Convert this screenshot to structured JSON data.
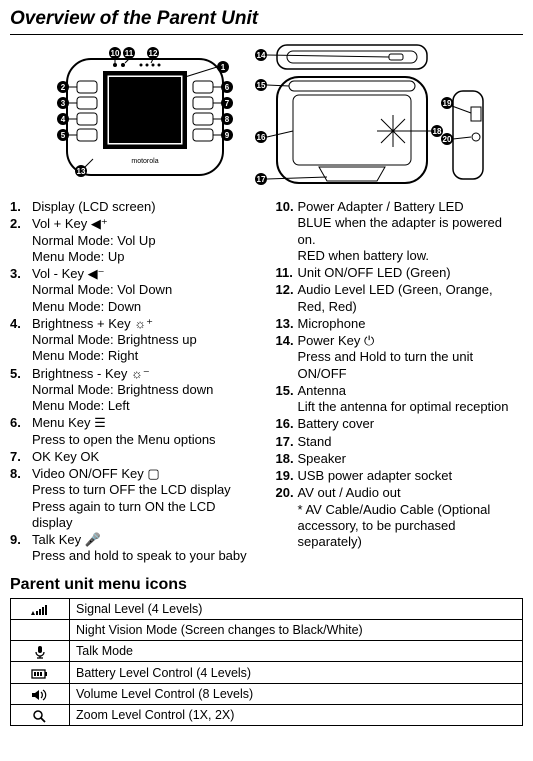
{
  "title": "Overview of the Parent Unit",
  "left": [
    {
      "n": "1.",
      "lines": [
        "Display (LCD screen)"
      ]
    },
    {
      "n": "2.",
      "lines": [
        "Vol + Key ◀⁺",
        "Normal Mode: Vol Up",
        "Menu Mode: Up"
      ]
    },
    {
      "n": "3.",
      "lines": [
        "Vol - Key ◀⁻",
        "Normal Mode: Vol Down",
        "Menu Mode: Down"
      ]
    },
    {
      "n": "4.",
      "lines": [
        "Brightness + Key ☼⁺",
        "Normal Mode: Brightness up",
        "Menu Mode: Right"
      ]
    },
    {
      "n": "5.",
      "lines": [
        "Brightness - Key ☼⁻",
        "Normal Mode: Brightness down",
        "Menu Mode: Left"
      ]
    },
    {
      "n": "6.",
      "lines": [
        "Menu Key ☰",
        "Press to open the Menu options"
      ]
    },
    {
      "n": "7.",
      "lines": [
        "OK Key OK"
      ]
    },
    {
      "n": "8.",
      "lines": [
        "Video ON/OFF Key ▢",
        "Press to turn OFF the LCD display",
        "Press again to turn ON the LCD display"
      ]
    },
    {
      "n": "9.",
      "lines": [
        "Talk Key 🎤",
        "Press and hold to speak to your baby"
      ]
    }
  ],
  "right": [
    {
      "n": "10.",
      "lines": [
        "Power Adapter / Battery LED",
        "BLUE when the adapter is powered on.",
        "RED when battery low."
      ]
    },
    {
      "n": "11.",
      "lines": [
        "Unit ON/OFF LED (Green)"
      ]
    },
    {
      "n": "12.",
      "lines": [
        "Audio Level LED (Green, Orange, Red, Red)"
      ]
    },
    {
      "n": "13.",
      "lines": [
        "Microphone"
      ]
    },
    {
      "n": "14.",
      "lines": [
        "Power Key ⏻",
        "Press and Hold to turn the unit ON/OFF"
      ]
    },
    {
      "n": "15.",
      "lines": [
        "Antenna",
        "Lift the antenna for optimal reception"
      ]
    },
    {
      "n": "16.",
      "lines": [
        "Battery cover"
      ]
    },
    {
      "n": "17.",
      "lines": [
        "Stand"
      ]
    },
    {
      "n": "18.",
      "lines": [
        "Speaker"
      ]
    },
    {
      "n": "19.",
      "lines": [
        "USB power adapter socket"
      ]
    },
    {
      "n": "20.",
      "lines": [
        "AV out / Audio out",
        "* AV Cable/Audio Cable (Optional accessory, to be purchased separately)"
      ]
    }
  ],
  "subtitle": "Parent unit menu icons",
  "iconRows": [
    "Signal Level (4 Levels)",
    "Night Vision Mode (Screen changes to Black/White)",
    "Talk Mode",
    "Battery Level Control (4 Levels)",
    "Volume Level Control (8 Levels)",
    "Zoom Level Control (1X, 2X)"
  ],
  "iconGlyphs": [
    "sig",
    "moon",
    "mic",
    "batt",
    "vol",
    "zoom"
  ]
}
